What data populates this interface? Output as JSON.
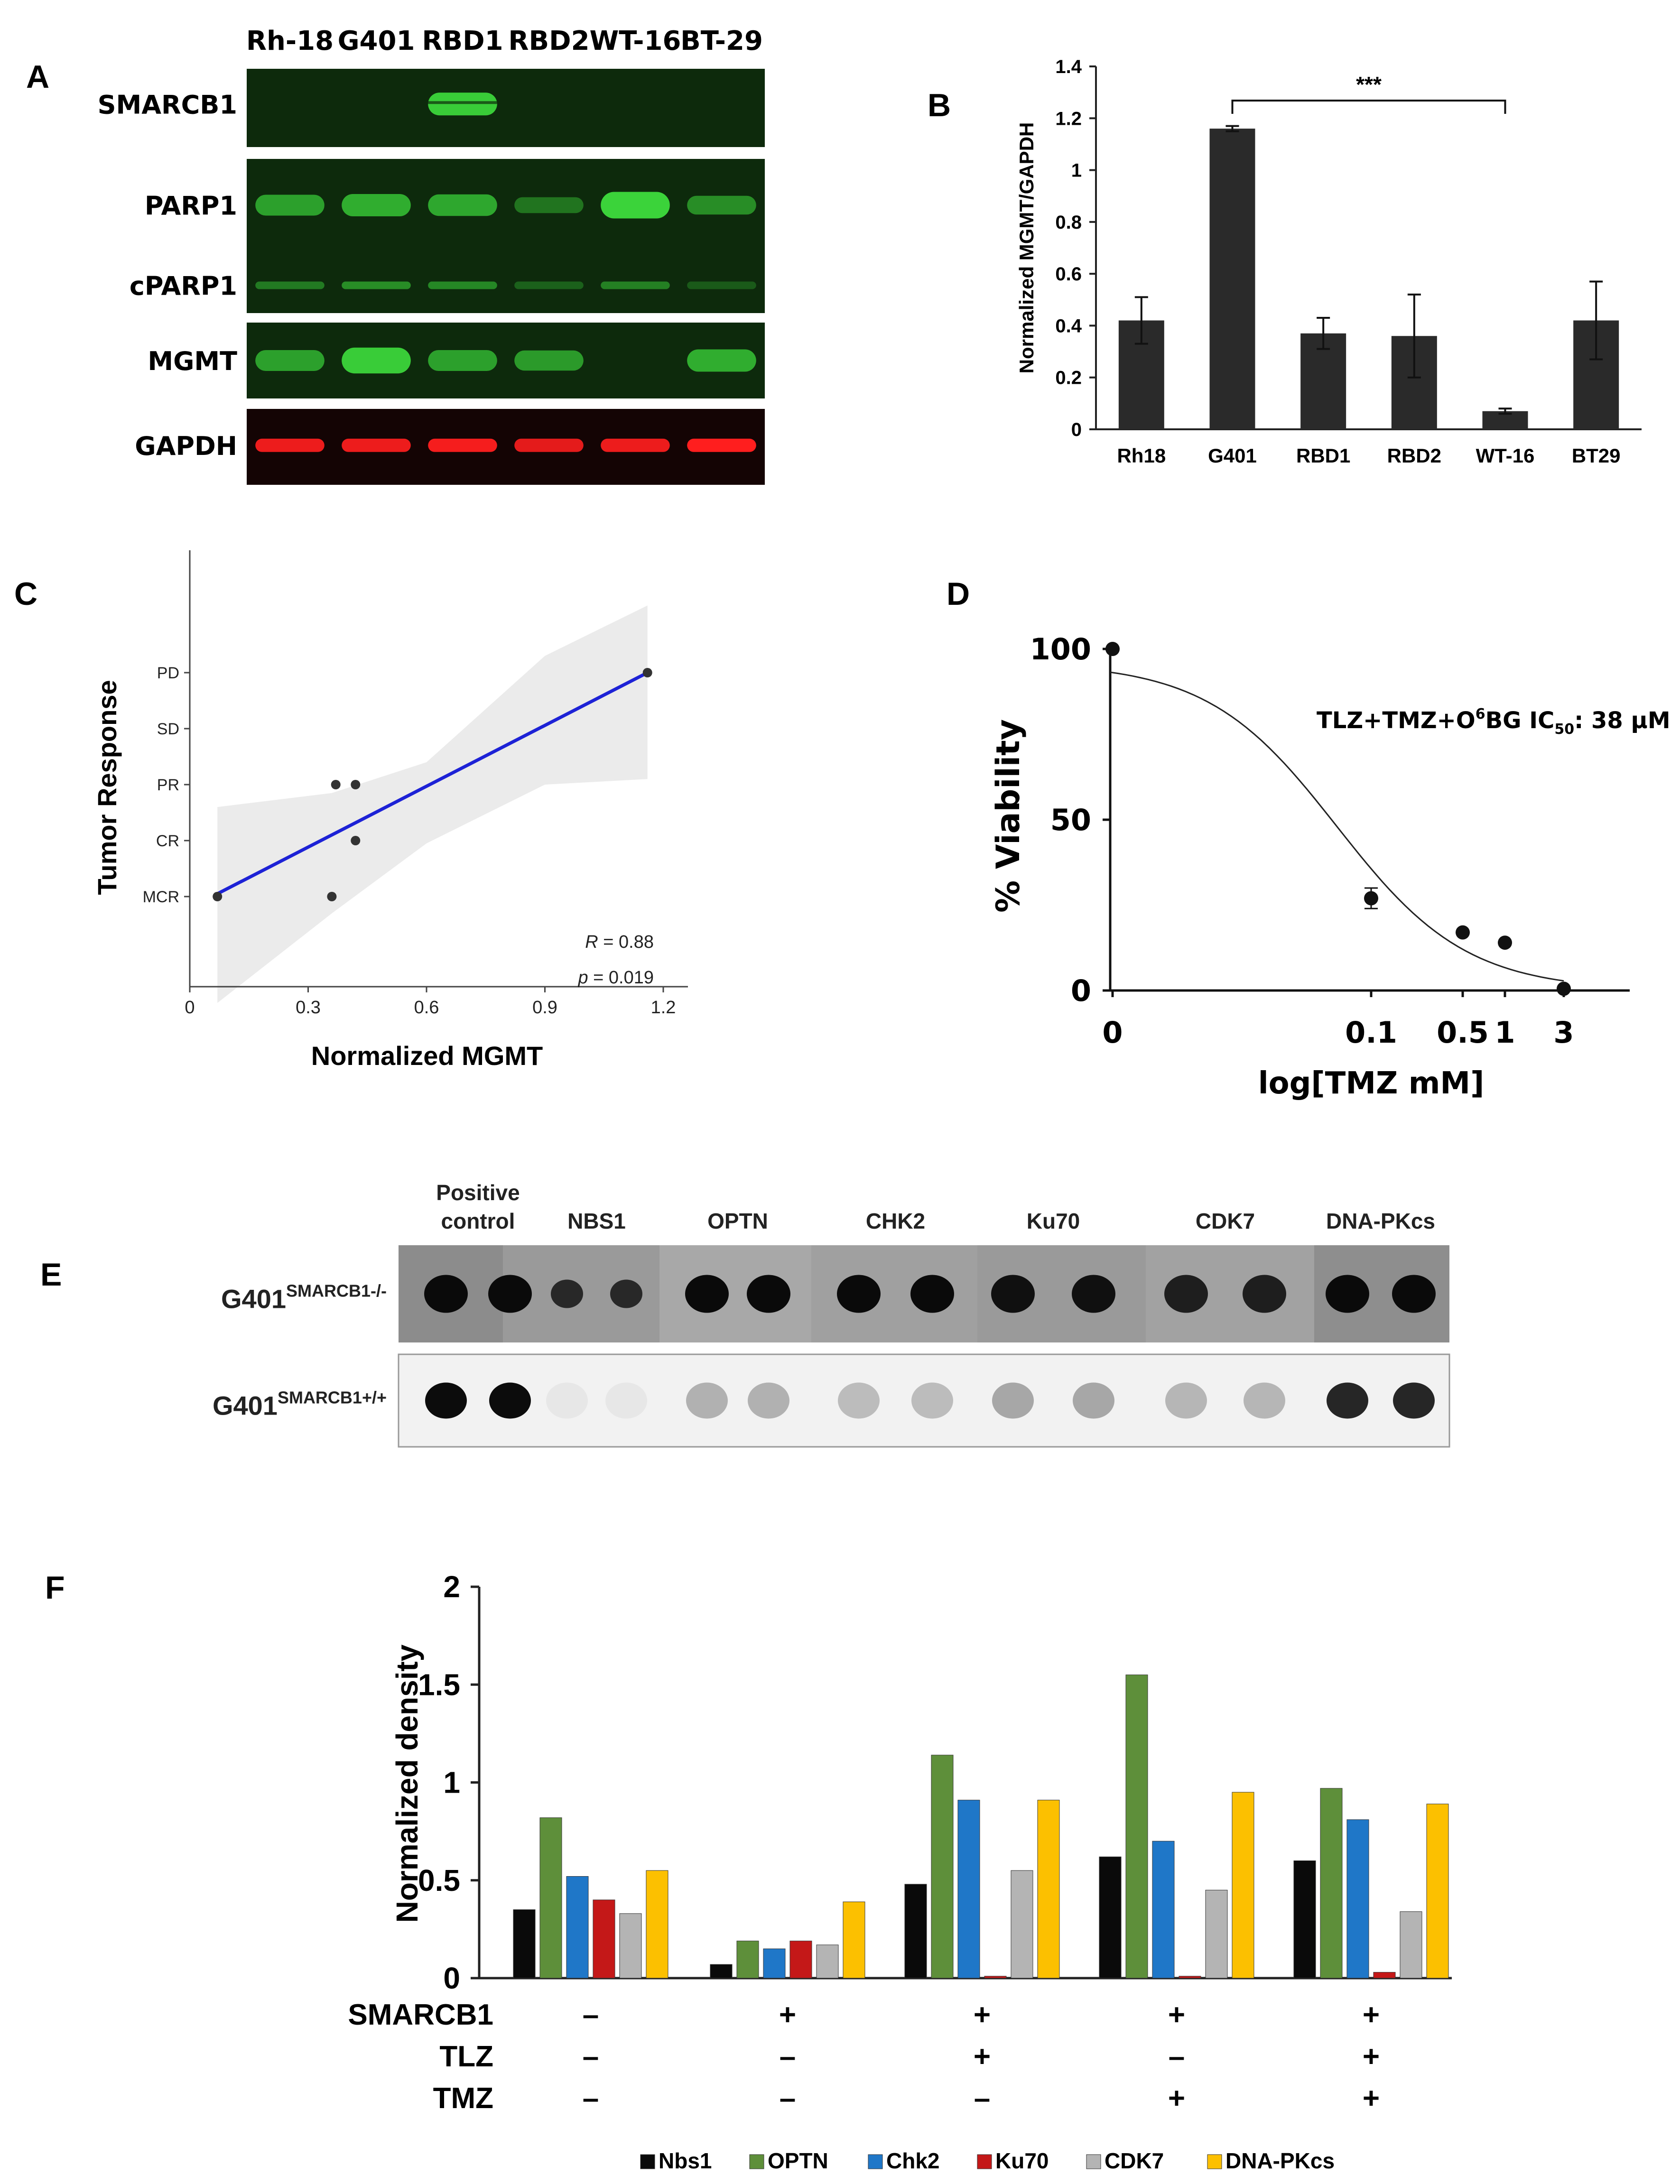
{
  "panels": {
    "A": "A",
    "B": "B",
    "C": "C",
    "D": "D",
    "E": "E",
    "F": "F"
  },
  "panel_a": {
    "lanes": [
      "Rh-18",
      "G401",
      "RBD1",
      "RBD2",
      "WT-16",
      "BT-29"
    ],
    "rows": [
      "SMARCB1",
      "PARP1",
      "cPARP1",
      "MGMT",
      "GAPDH"
    ],
    "band_intensity": {
      "SMARCB1": [
        0,
        0,
        0.95,
        0,
        0,
        0
      ],
      "PARP1": [
        0.6,
        0.7,
        0.65,
        0.25,
        1.0,
        0.45
      ],
      "cPARP1": [
        0.3,
        0.45,
        0.4,
        0.1,
        0.35,
        0.05
      ],
      "MGMT": [
        0.6,
        0.95,
        0.6,
        0.55,
        0,
        0.7
      ],
      "GAPDH": [
        0.9,
        0.9,
        0.95,
        0.85,
        0.9,
        1.0
      ]
    },
    "colors": {
      "green": "#3bd33a",
      "red": "#ff1e1e",
      "bg_green": "#0d2a0c",
      "bg_red": "#140404"
    }
  },
  "chart_data": [
    {
      "id": "B",
      "type": "bar",
      "categories": [
        "Rh18",
        "G401",
        "RBD1",
        "RBD2",
        "WT-16",
        "BT29"
      ],
      "values": [
        0.42,
        1.16,
        0.37,
        0.36,
        0.07,
        0.42
      ],
      "errors": [
        0.09,
        0.01,
        0.06,
        0.16,
        0.01,
        0.15
      ],
      "ylabel": "Normalized MGMT/GAPDH",
      "ylim": [
        0,
        1.4
      ],
      "yticks": [
        "0",
        "0.2",
        "0.4",
        "0.6",
        "0.8",
        "1",
        "1.2",
        "1.4"
      ],
      "significance": "***",
      "significance_between": [
        "G401",
        "WT-16"
      ],
      "bar_color": "#2a2a2a"
    },
    {
      "id": "C",
      "type": "scatter",
      "xlabel": "Normalized MGMT",
      "ylabel": "Tumor Response",
      "xticks": [
        "0",
        "0.3",
        "0.6",
        "0.9",
        "1.2"
      ],
      "xlim": [
        0,
        1.2
      ],
      "ycategories": [
        "MCR",
        "CR",
        "PR",
        "SD",
        "PD"
      ],
      "points": [
        {
          "x": 0.07,
          "y": 0
        },
        {
          "x": 0.36,
          "y": 0
        },
        {
          "x": 0.37,
          "y": 2
        },
        {
          "x": 0.42,
          "y": 2
        },
        {
          "x": 0.42,
          "y": 1
        },
        {
          "x": 1.16,
          "y": 4
        }
      ],
      "fit_line": {
        "x0": 0.07,
        "y0": 0.05,
        "x1": 1.16,
        "y1": 4.0
      },
      "ci_band": [
        {
          "x": 0.07,
          "lo": -1.9,
          "hi": 1.6
        },
        {
          "x": 0.36,
          "lo": -0.3,
          "hi": 1.85
        },
        {
          "x": 0.6,
          "lo": 0.95,
          "hi": 2.4
        },
        {
          "x": 0.9,
          "lo": 2.0,
          "hi": 4.3
        },
        {
          "x": 1.16,
          "lo": 2.1,
          "hi": 5.2
        }
      ],
      "annotation_r_label": "R",
      "annotation_r_value": " = 0.88",
      "annotation_p_label": "p",
      "annotation_p_value": " = 0.019",
      "line_color": "#1d22d6",
      "band_color": "#ebebeb"
    },
    {
      "id": "D",
      "type": "line",
      "xlabel": "log[TMZ mM]",
      "ylabel": "% Viability",
      "xtick_labels": [
        "0",
        "0.1",
        "0.5",
        "1",
        "3"
      ],
      "yticks": [
        "0",
        "50",
        "100"
      ],
      "ylim": [
        0,
        100
      ],
      "points": [
        {
          "x": "0",
          "y": 100,
          "err": 0
        },
        {
          "x": "0.1",
          "y": 27,
          "err": 3
        },
        {
          "x": "0.5",
          "y": 17,
          "err": 0
        },
        {
          "x": "1",
          "y": 14,
          "err": 0
        },
        {
          "x": "3",
          "y": 0.5,
          "err": 0
        }
      ],
      "fit_top": 96,
      "fit_bottom": 0,
      "annotation": "TLZ+TMZ+O",
      "annotation_sup": "6",
      "annotation_mid": "BG IC",
      "annotation_sub": "50",
      "annotation_end": ": 38 μM"
    },
    {
      "id": "F",
      "type": "bar",
      "ylabel": "Normalized density",
      "ylim": [
        0,
        2
      ],
      "yticks": [
        "0",
        "0.5",
        "1",
        "1.5",
        "2"
      ],
      "groups": 5,
      "series": [
        {
          "name": "Nbs1",
          "color": "#0a0a0a",
          "values": [
            0.35,
            0.07,
            0.48,
            0.62,
            0.6
          ]
        },
        {
          "name": "OPTN",
          "color": "#5e8f3a",
          "values": [
            0.82,
            0.19,
            1.14,
            1.55,
            0.97
          ]
        },
        {
          "name": "Chk2",
          "color": "#1f77c8",
          "values": [
            0.52,
            0.15,
            0.91,
            0.7,
            0.81
          ]
        },
        {
          "name": "Ku70",
          "color": "#c41818",
          "values": [
            0.4,
            0.19,
            0.01,
            0.01,
            0.03
          ]
        },
        {
          "name": "CDK7",
          "color": "#b4b4b4",
          "values": [
            0.33,
            0.17,
            0.55,
            0.45,
            0.34
          ]
        },
        {
          "name": "DNA-PKcs",
          "color": "#fcc000",
          "values": [
            0.55,
            0.39,
            0.91,
            0.95,
            0.89
          ]
        }
      ],
      "conditions": [
        {
          "label": "SMARCB1",
          "values": [
            "–",
            "+",
            "+",
            "+",
            "+"
          ]
        },
        {
          "label": "TLZ",
          "values": [
            "–",
            "–",
            "+",
            "–",
            "+"
          ]
        },
        {
          "label": "TMZ",
          "values": [
            "–",
            "–",
            "–",
            "+",
            "+"
          ]
        }
      ]
    }
  ],
  "panel_e": {
    "columns": [
      "Positive\ncontrol",
      "NBS1",
      "OPTN",
      "CHK2",
      "Ku70",
      "CDK7",
      "DNA-PKcs"
    ],
    "column_line1": [
      "Positive",
      "NBS1",
      "OPTN",
      "CHK2",
      "Ku70",
      "CDK7",
      "DNA-PKcs"
    ],
    "column_line2": [
      "control",
      "",
      "",
      "",
      "",
      "",
      ""
    ],
    "row1_base": "G401",
    "row1_sup": "SMARCB1-/-",
    "row2_base": "G401",
    "row2_sup": "SMARCB1+/+",
    "row1_intensity": [
      0.95,
      0.8,
      0.95,
      0.95,
      0.92,
      0.85,
      0.95
    ],
    "row2_intensity": [
      0.97,
      0.08,
      0.4,
      0.35,
      0.45,
      0.38,
      0.9
    ],
    "row1_bg": [
      "#8c8c8c",
      "#9a9a9a",
      "#a8a8a8",
      "#a0a0a0",
      "#9a9a9a",
      "#a2a2a2",
      "#8e8e8e"
    ]
  }
}
